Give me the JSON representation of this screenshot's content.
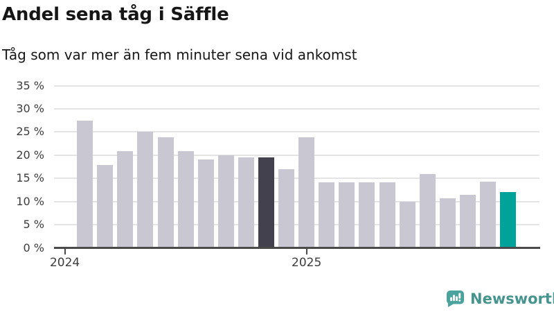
{
  "header": {
    "title": "Andel sena tåg i Säffle",
    "subtitle": "Tåg som var mer än fem minuter sena vid ankomst"
  },
  "chart_data": {
    "type": "bar",
    "title": "Andel sena tåg i Säffle",
    "subtitle": "Tåg som var mer än fem minuter sena vid ankomst",
    "unit": "%",
    "x": [
      "2024-02",
      "2024-03",
      "2024-04",
      "2024-05",
      "2024-06",
      "2024-07",
      "2024-08",
      "2024-09",
      "2024-10",
      "2024-11",
      "2024-12",
      "2025-01",
      "2025-02",
      "2025-03",
      "2025-04",
      "2025-05",
      "2025-06",
      "2025-07",
      "2025-08",
      "2025-09",
      "2025-10",
      "2025-11"
    ],
    "values": [
      27.5,
      17.8,
      20.8,
      25.1,
      23.9,
      20.8,
      19.0,
      20.0,
      19.5,
      19.5,
      17.0,
      23.9,
      14.2,
      14.2,
      14.2,
      14.1,
      10.0,
      16.0,
      10.7,
      11.4,
      14.3,
      12.0
    ],
    "highlight_dark_month": "2024-11",
    "highlight_teal_month": "2025-11",
    "ylim": [
      0,
      35
    ],
    "yticks": [
      {
        "value": 35,
        "label": "35 %"
      },
      {
        "value": 30,
        "label": "30 %"
      },
      {
        "value": 25,
        "label": "25 %"
      },
      {
        "value": 20,
        "label": "20 %"
      },
      {
        "value": 15,
        "label": "15 %"
      },
      {
        "value": 10,
        "label": "10 %"
      },
      {
        "value": 5,
        "label": "5 %"
      },
      {
        "value": 0,
        "label": "0 %"
      }
    ],
    "xticks": [
      {
        "month": "2024-01",
        "label": "2024"
      },
      {
        "month": "2025-01",
        "label": "2025"
      }
    ],
    "grid": true,
    "legend": "none",
    "colors": {
      "bar_default": "#c9c7d1",
      "bar_dark": "#43414e",
      "bar_teal": "#00a299",
      "gridline": "#e4e4e4",
      "axis": "#4a4a4a",
      "tick_text": "#3c3c3c"
    }
  },
  "footer": {
    "brand_name": "Newsworthy",
    "brand_color": "#45948e",
    "logo_icon": "newsworthy-speech-bubble-barchart-icon"
  }
}
